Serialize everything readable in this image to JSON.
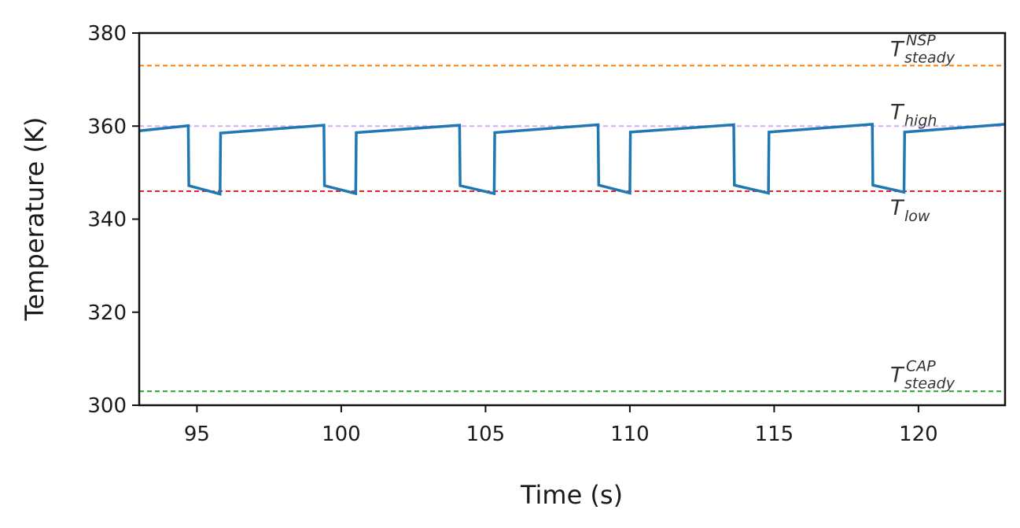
{
  "chart_data": {
    "type": "line",
    "title": "",
    "xlabel": "Time (s)",
    "ylabel": "Temperature (K)",
    "xlim": [
      93,
      123
    ],
    "ylim": [
      300,
      380
    ],
    "x_ticks": [
      95,
      100,
      105,
      110,
      115,
      120
    ],
    "y_ticks": [
      300,
      320,
      340,
      360,
      380
    ],
    "grid": false,
    "legend": "none",
    "series": [
      {
        "color": "#1f77b4",
        "x": [
          93.0,
          94.7,
          94.72,
          95.8,
          95.82,
          99.4,
          99.42,
          100.5,
          100.52,
          104.1,
          104.12,
          105.3,
          105.32,
          108.9,
          108.92,
          110.0,
          110.02,
          113.6,
          113.62,
          114.8,
          114.82,
          118.4,
          118.42,
          119.5,
          119.52,
          123.0
        ],
        "y": [
          359.0,
          360.1,
          347.2,
          345.4,
          358.5,
          360.2,
          347.2,
          345.5,
          358.6,
          360.2,
          347.2,
          345.5,
          358.6,
          360.3,
          347.3,
          345.6,
          358.7,
          360.3,
          347.3,
          345.6,
          358.7,
          360.4,
          347.3,
          345.8,
          358.7,
          360.4
        ]
      }
    ],
    "reference_lines": [
      {
        "id": "nsp",
        "y": 373,
        "color": "#ff7f0e",
        "style": "dashed",
        "label_main": "T",
        "label_sub": "steady",
        "label_sup": "NSP"
      },
      {
        "id": "high",
        "y": 360,
        "color": "#d8a8f0",
        "style": "dashed",
        "label_main": "T",
        "label_sub": "high",
        "label_sup": ""
      },
      {
        "id": "low",
        "y": 346,
        "color": "#e62728",
        "style": "dashed",
        "label_main": "T",
        "label_sub": "low",
        "label_sup": ""
      },
      {
        "id": "cap",
        "y": 303,
        "color": "#2ca02c",
        "style": "dashed",
        "label_main": "T",
        "label_sub": "steady",
        "label_sup": "CAP"
      }
    ]
  }
}
